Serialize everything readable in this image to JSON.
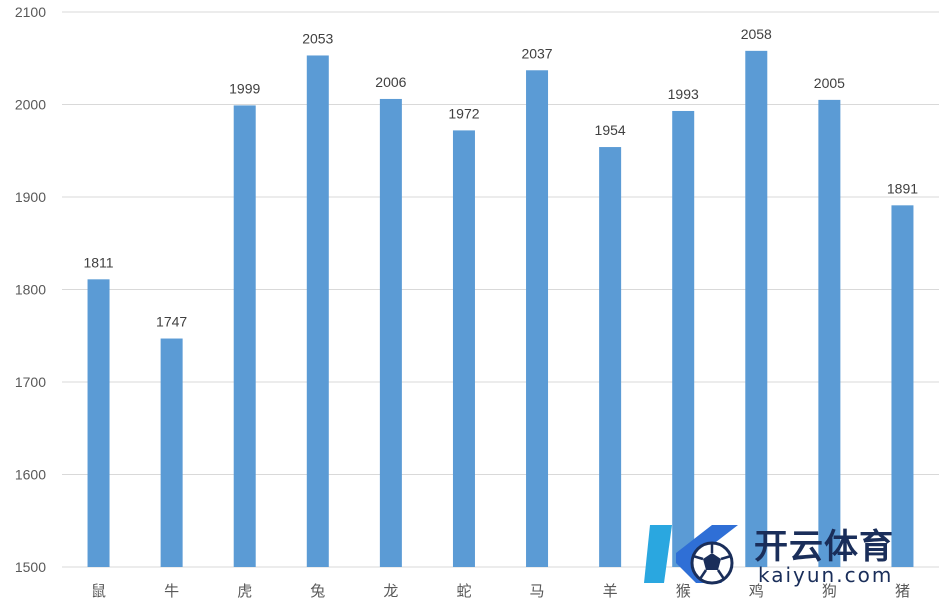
{
  "chart_data": {
    "type": "bar",
    "categories": [
      "鼠",
      "牛",
      "虎",
      "兔",
      "龙",
      "蛇",
      "马",
      "羊",
      "猴",
      "鸡",
      "狗",
      "猪"
    ],
    "values": [
      1811,
      1747,
      1999,
      2053,
      2006,
      1972,
      2037,
      1954,
      1993,
      2058,
      2005,
      1891
    ],
    "title": "",
    "xlabel": "",
    "ylabel": "",
    "ylim": [
      1500,
      2100
    ],
    "yticks": [
      1500,
      1600,
      1700,
      1800,
      1900,
      2000,
      2100
    ],
    "grid": true,
    "data_labels": true,
    "bar_color": "#5b9bd5"
  },
  "watermark": {
    "brand": "开云体育",
    "domain": "kaiyun.com",
    "icon": "soccer-ball-logo"
  }
}
